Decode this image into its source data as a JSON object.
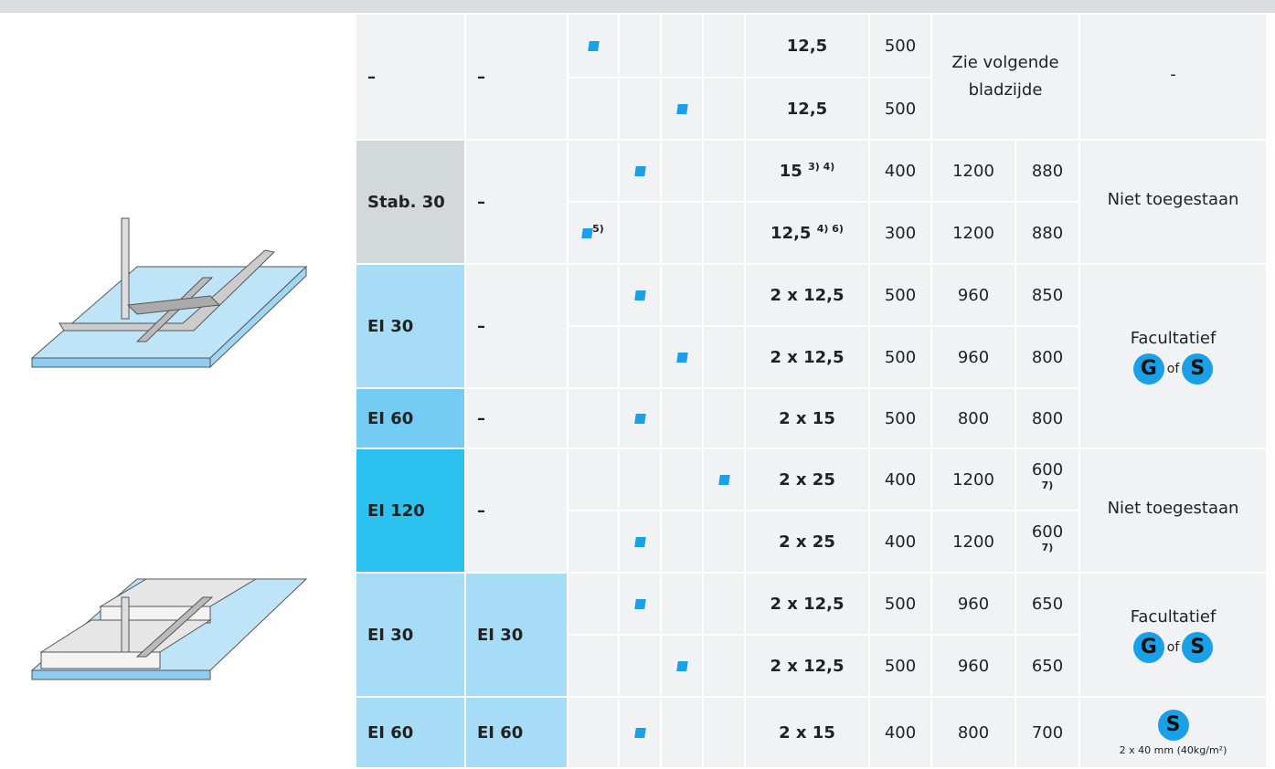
{
  "table": {
    "rows": [
      {
        "c1": "–",
        "c2": "–",
        "thickness": "12,5",
        "a": "500",
        "span": "Zie volgende bladzijde",
        "finish": "-"
      },
      {
        "thickness": "12,5",
        "a": "500"
      },
      {
        "c1": "Stab. 30",
        "c2": "–",
        "thickness": "15",
        "thickness_note": "3) 4)",
        "a": "400",
        "b": "1200",
        "c": "880",
        "finish": "Niet toegestaan"
      },
      {
        "mark_note": "5)",
        "thickness": "12,5",
        "thickness_note": "4) 6)",
        "a": "300",
        "b": "1200",
        "c": "880"
      },
      {
        "c1": "EI 30",
        "c2": "–",
        "thickness": "2 x 12,5",
        "a": "500",
        "b": "960",
        "c": "850",
        "finish": "Facultatief",
        "badge1": "G",
        "badge_join": "of",
        "badge2": "S"
      },
      {
        "thickness": "2 x 12,5",
        "a": "500",
        "b": "960",
        "c": "800"
      },
      {
        "c1": "EI 60",
        "c2": "–",
        "thickness": "2 x 15",
        "a": "500",
        "b": "800",
        "c": "800"
      },
      {
        "c1": "EI 120",
        "c2": "–",
        "thickness": "2 x 25",
        "a": "400",
        "b": "1200",
        "c": "600",
        "c_note": "7)",
        "finish": "Niet toegestaan"
      },
      {
        "thickness": "2 x 25",
        "a": "400",
        "b": "1200",
        "c": "600",
        "c_note": "7)"
      },
      {
        "c1": "EI 30",
        "c2": "EI 30",
        "thickness": "2 x 12,5",
        "a": "500",
        "b": "960",
        "c": "650",
        "finish": "Facultatief",
        "badge1": "G",
        "badge_join": "of",
        "badge2": "S"
      },
      {
        "thickness": "2 x 12,5",
        "a": "500",
        "b": "960",
        "c": "650"
      },
      {
        "c1": "EI 60",
        "c2": "EI 60",
        "thickness": "2 x 15",
        "a": "400",
        "b": "800",
        "c": "700",
        "badge2": "S",
        "finish_note": "2 x 40 mm (40kg/m²)"
      }
    ]
  }
}
